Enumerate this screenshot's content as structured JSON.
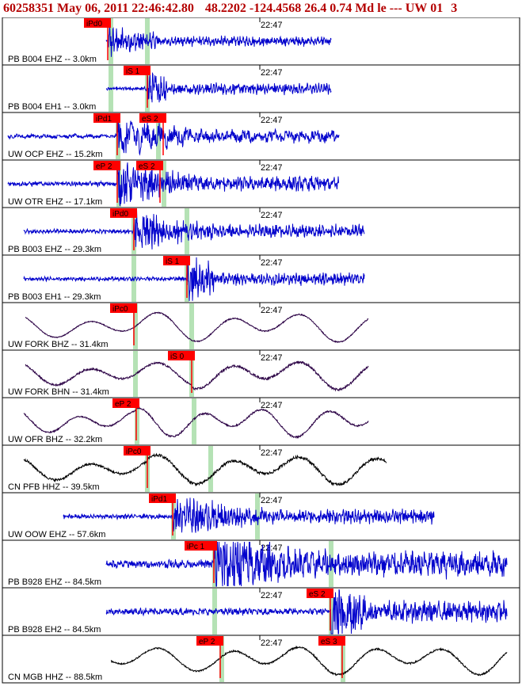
{
  "header": {
    "event_id": "60258351",
    "datetime": "May 06, 2011 22:46:42.80",
    "latitude": "48.2202",
    "longitude": "-124.4568",
    "depth": "26.4",
    "magnitude": "0.74",
    "mag_type": "Md",
    "event_type": "le",
    "quality": "---",
    "network": "UW",
    "version": "01",
    "extra": "3"
  },
  "colors": {
    "header_text": "#b40000",
    "pick_box": "#ff0000",
    "theoretical_band": "#b5e2b5",
    "blue_trace": "#0000cc",
    "black_trace": "#000000",
    "dark_trace": "#2a0044",
    "panel_border": "#000000"
  },
  "chart_data": {
    "type": "line",
    "title": "60258351 May 06, 2011 22:46:42.80 48.2202 -124.4568 26.4 0.74 Md le --- UW 01 3",
    "time_tick_label": "22:47",
    "traces": [
      {
        "label": "PB B004 EHZ -- 3.0km",
        "color": "blue",
        "picks": [
          {
            "text": "iPd0",
            "x": 136
          }
        ],
        "green": [
          140,
          186
        ]
      },
      {
        "label": "PB B004 EH1 -- 3.0km",
        "color": "blue",
        "picks": [
          {
            "text": "iS 1",
            "x": 186
          }
        ],
        "green": [
          140,
          186
        ]
      },
      {
        "label": "UW OCP EHZ -- 15.2km",
        "color": "blue",
        "picks": [
          {
            "text": "iPd1",
            "x": 148
          },
          {
            "text": "eS 2",
            "x": 206
          }
        ],
        "green": [
          149,
          200
        ]
      },
      {
        "label": "UW OTR EHZ -- 17.1km",
        "color": "blue",
        "picks": [
          {
            "text": "eP 2",
            "x": 148
          },
          {
            "text": "eS 2",
            "x": 202
          }
        ],
        "green": [
          150,
          207
        ]
      },
      {
        "label": "PB B003 EHZ -- 29.3km",
        "color": "blue",
        "picks": [
          {
            "text": "iPd0",
            "x": 169
          }
        ],
        "green": [
          169,
          236
        ]
      },
      {
        "label": "PB B003 EH1 -- 29.3km",
        "color": "blue",
        "picks": [
          {
            "text": "iS 1",
            "x": 236
          }
        ],
        "green": [
          169,
          236
        ]
      },
      {
        "label": "UW FORK BHZ -- 31.4km",
        "color": "dark",
        "picks": [
          {
            "text": "iPc0",
            "x": 169
          }
        ],
        "green": [
          171,
          242
        ]
      },
      {
        "label": "UW FORK BHN -- 31.4km",
        "color": "dark",
        "picks": [
          {
            "text": "iS 0",
            "x": 242
          }
        ],
        "green": [
          171,
          242
        ]
      },
      {
        "label": "UW OFR BHZ -- 32.2km",
        "color": "dark",
        "picks": [
          {
            "text": "eP 2",
            "x": 172
          }
        ],
        "green": [
          173,
          245
        ]
      },
      {
        "label": "CN PFB HHZ -- 39.5km",
        "color": "black",
        "picks": [
          {
            "text": "iPc0",
            "x": 186
          }
        ],
        "green": [
          186,
          266
        ]
      },
      {
        "label": "UW OOW EHZ -- 57.6km",
        "color": "blue",
        "picks": [
          {
            "text": "iPd1",
            "x": 218
          }
        ],
        "green": [
          219,
          325
        ]
      },
      {
        "label": "PB B928 EHZ -- 84.5km",
        "color": "blue",
        "picks": [
          {
            "text": "iPc 1",
            "x": 270
          }
        ],
        "green": [
          271,
          418
        ]
      },
      {
        "label": "PB B928 EH2 -- 84.5km",
        "color": "blue",
        "picks": [
          {
            "text": "eS 2",
            "x": 417
          }
        ],
        "green": [
          271,
          418
        ]
      },
      {
        "label": "CN MGB HHZ -- 88.5km",
        "color": "black",
        "picks": [
          {
            "text": "eP 2",
            "x": 278
          },
          {
            "text": "eS 3",
            "x": 432
          }
        ],
        "green": [
          280,
          433
        ]
      }
    ]
  }
}
